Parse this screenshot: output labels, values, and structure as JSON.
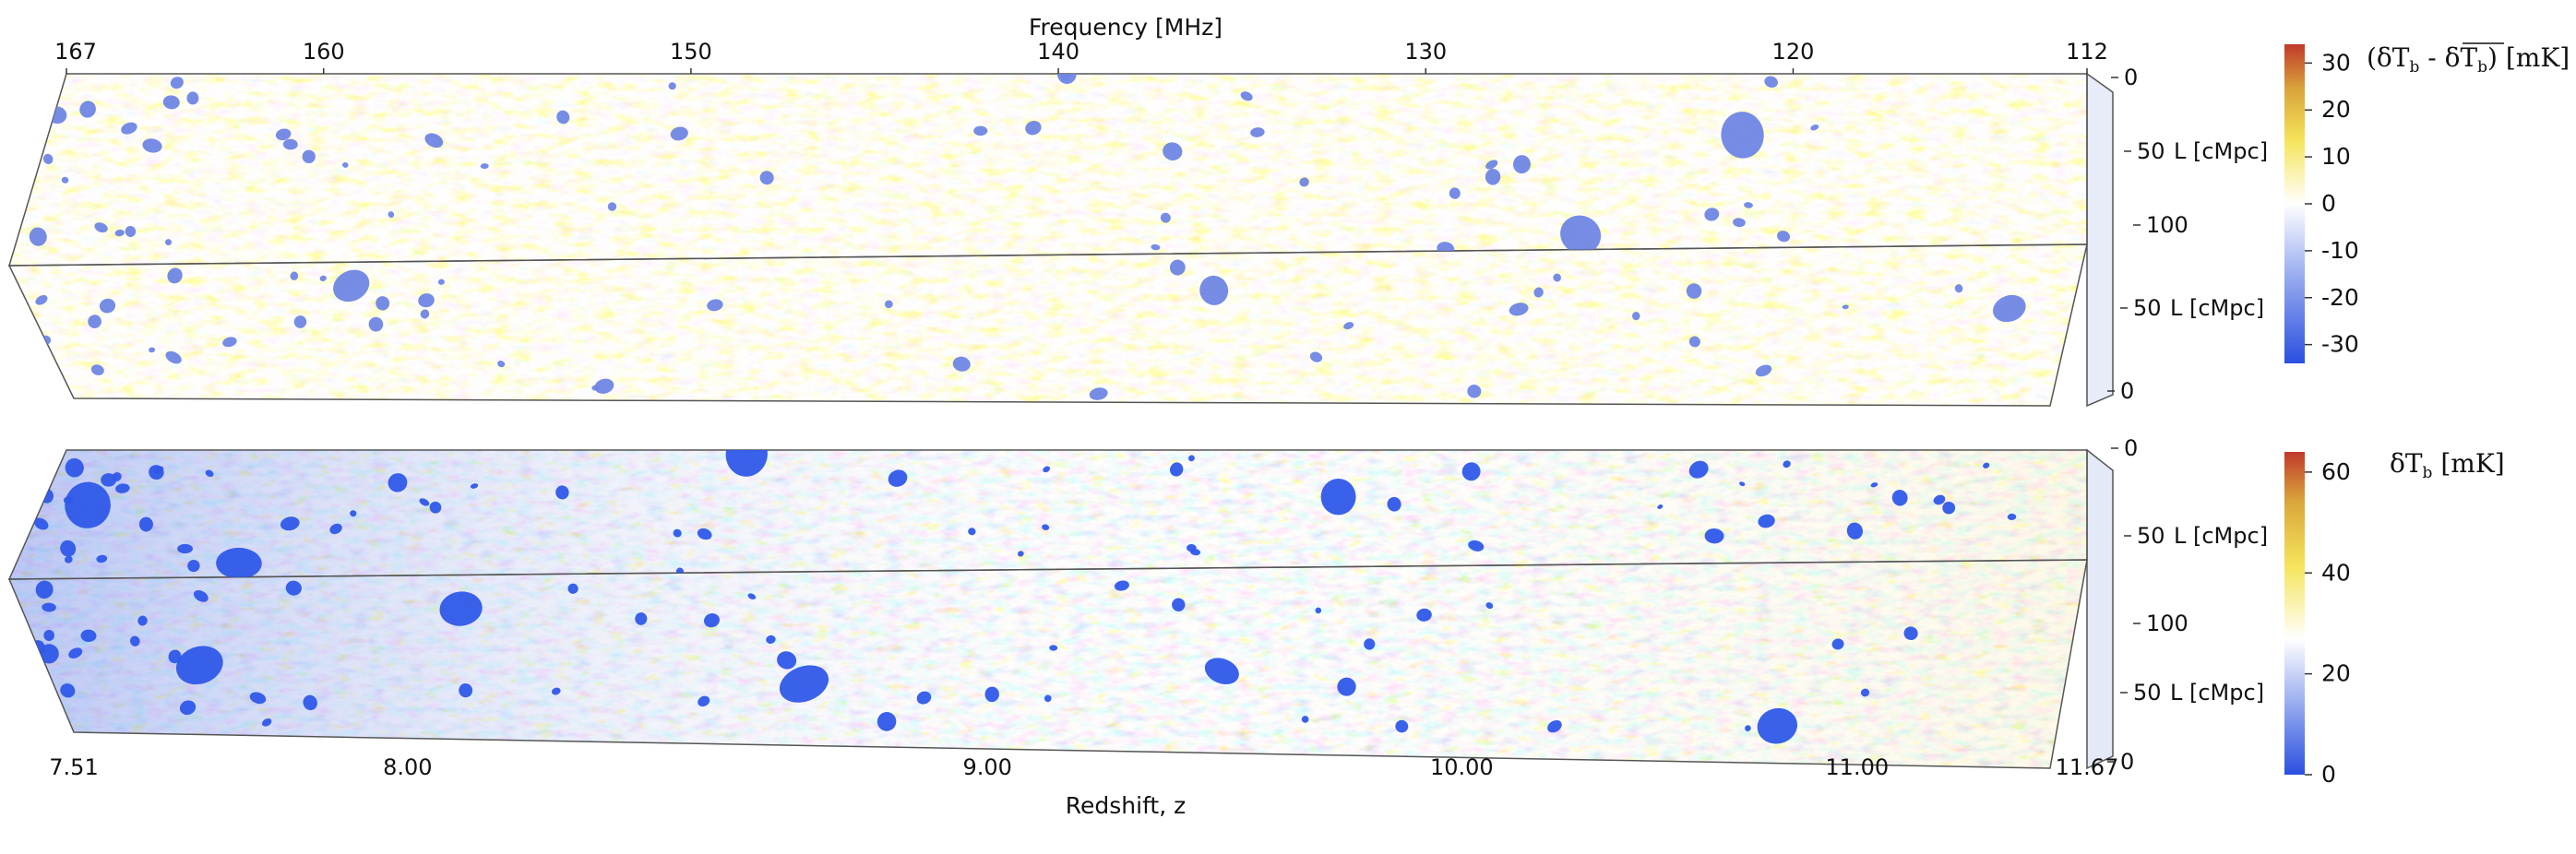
{
  "top_axis": {
    "title": "Frequency [MHz]",
    "ticks": [
      {
        "label": "167",
        "value": 167
      },
      {
        "label": "160",
        "value": 160
      },
      {
        "label": "150",
        "value": 150
      },
      {
        "label": "140",
        "value": 140
      },
      {
        "label": "130",
        "value": 130
      },
      {
        "label": "120",
        "value": 120
      },
      {
        "label": "112",
        "value": 112
      }
    ]
  },
  "bottom_axis": {
    "title": "Redshift, z",
    "ticks": [
      {
        "label": "7.51",
        "value": 7.51
      },
      {
        "label": "8.00",
        "value": 8.0
      },
      {
        "label": "9.00",
        "value": 9.0
      },
      {
        "label": "10.00",
        "value": 10.0
      },
      {
        "label": "11.00",
        "value": 11.0
      },
      {
        "label": "11.67",
        "value": 11.67
      }
    ]
  },
  "side_axis": {
    "unit_label": "L [cMpc]",
    "ticks": [
      "0",
      "50",
      "100",
      "50",
      "0"
    ]
  },
  "panels": [
    {
      "name": "top",
      "colorbar": {
        "title_main": "(δT",
        "title_parts": [
          "b",
          " - δT",
          "b",
          ") [mK]"
        ],
        "ticks": [
          "30",
          "20",
          "10",
          "0",
          "-10",
          "-20",
          "-30"
        ],
        "min": -34,
        "max": 34,
        "colors": [
          "#2b4fe0",
          "#8ea4ee",
          "#ffffff",
          "#f5e45a",
          "#d9a43b",
          "#c03a2b"
        ]
      }
    },
    {
      "name": "bottom",
      "colorbar": {
        "title_main": "δT",
        "title_parts": [
          "b",
          " [mK]"
        ],
        "ticks": [
          "60",
          "40",
          "20",
          "0"
        ],
        "min": 0,
        "max": 64,
        "colors": [
          "#2b4fe0",
          "#8ea4ee",
          "#ffffff",
          "#f5e45a",
          "#d9a43b",
          "#c03a2b"
        ]
      }
    }
  ]
}
